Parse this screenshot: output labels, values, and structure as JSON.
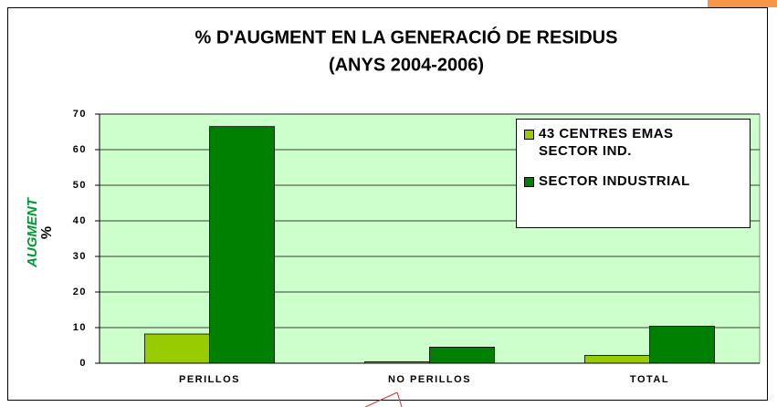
{
  "chart_data": {
    "type": "bar",
    "title": [
      "% D'AUGMENT EN LA GENERACIÓ DE RESIDUS",
      "(ANYS 2004-2006)"
    ],
    "y_label": "AUGMENT",
    "y_unit": "%",
    "categories": [
      "PERILLOS",
      "NO PERILLOS",
      "TOTAL"
    ],
    "series": [
      {
        "name": "43 CENTRES EMAS SECTOR IND.",
        "color": "#99cc00",
        "values": [
          8.2,
          0.4,
          2.2
        ]
      },
      {
        "name": "SECTOR INDUSTRIAL",
        "color": "#008000",
        "values": [
          66.5,
          4.5,
          10.4
        ]
      }
    ],
    "ylim": [
      0,
      70
    ],
    "yticks": [
      0,
      10,
      20,
      30,
      40,
      50,
      60,
      70
    ],
    "grid": true,
    "plot_background": "#ccffcc",
    "legend": "top-right"
  }
}
